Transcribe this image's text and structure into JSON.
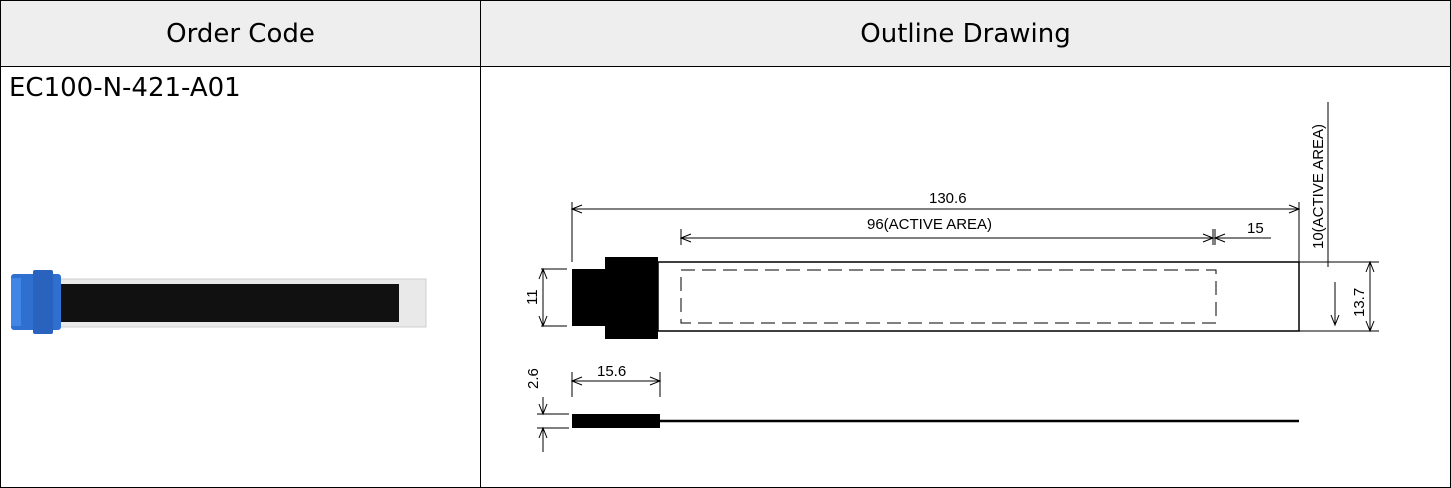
{
  "table": {
    "header_order_code": "Order Code",
    "header_outline_drawing": "Outline Drawing",
    "order_code": "EC100-N-421-A01"
  },
  "drawing": {
    "dim_total_length": "130.6",
    "dim_active_length": "96(ACTIVE AREA)",
    "dim_tail": "15",
    "dim_active_width": "10(ACTIVE AREA)",
    "dim_connector_height": "11",
    "dim_strip_width": "13.7",
    "dim_thickness": "2.6",
    "dim_connector_length": "15.6"
  },
  "photo": {
    "connector_color": "#2e6fd0",
    "strip_color": "#111111",
    "film_color": "#e6e6e6"
  }
}
